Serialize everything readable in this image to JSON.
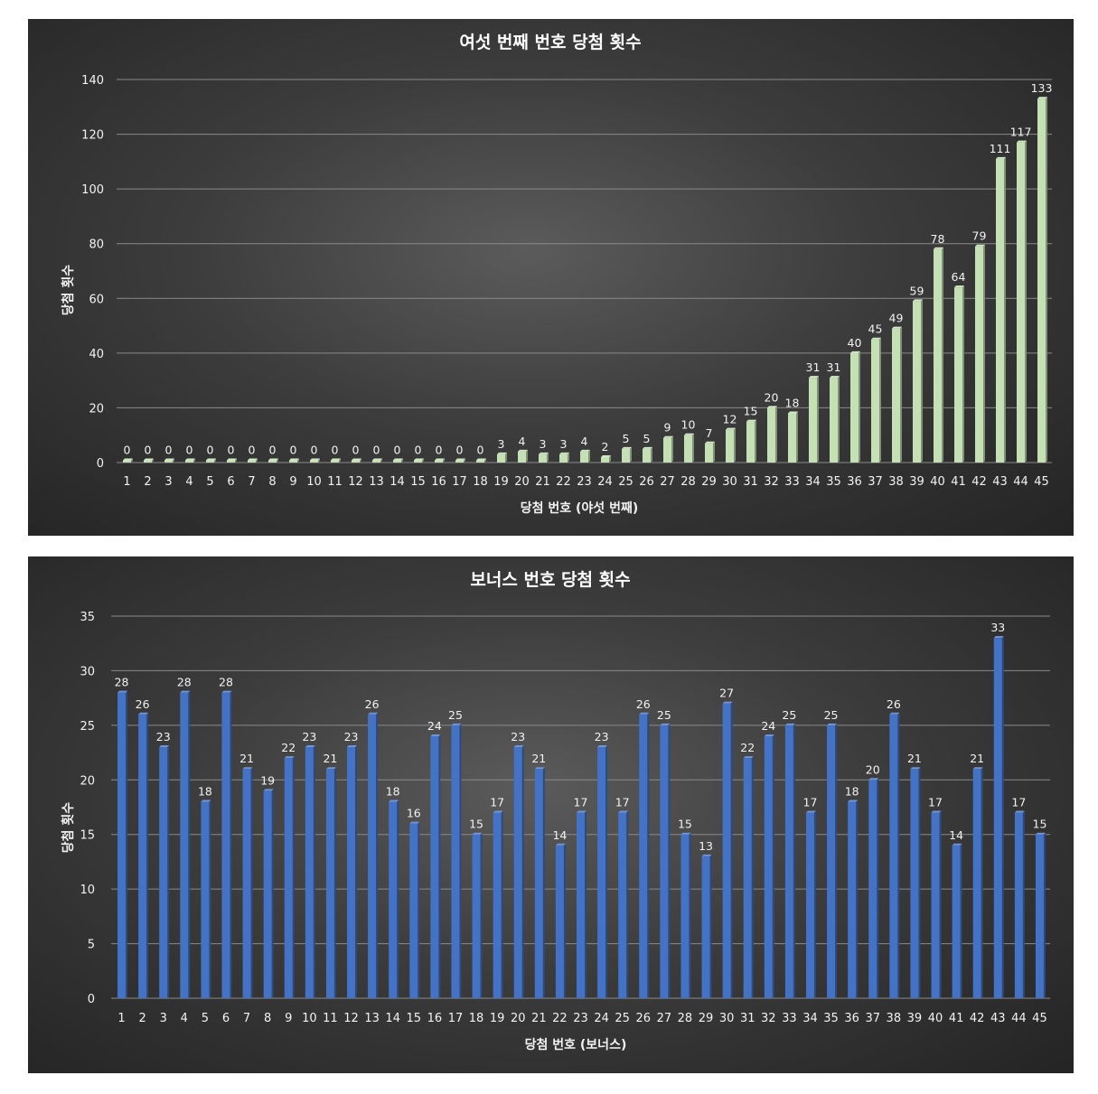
{
  "colors": {
    "green_bar": "#c5e0b4",
    "blue_bar": "#4472c4"
  },
  "chart_data": [
    {
      "type": "bar",
      "title": "여섯 번째 번호 당첨 횟수",
      "xlabel": "당첨 번호 (야섯 번째)",
      "ylabel": "당첨 횟수",
      "ylim": [
        0,
        140
      ],
      "yticks": [
        0,
        20,
        40,
        60,
        80,
        100,
        120,
        140
      ],
      "grid": true,
      "legend": "none",
      "color": "#c5e0b4",
      "categories": [
        "1",
        "2",
        "3",
        "4",
        "5",
        "6",
        "7",
        "8",
        "9",
        "10",
        "11",
        "12",
        "13",
        "14",
        "15",
        "16",
        "17",
        "18",
        "19",
        "20",
        "21",
        "22",
        "23",
        "24",
        "25",
        "26",
        "27",
        "28",
        "29",
        "30",
        "31",
        "32",
        "33",
        "34",
        "35",
        "36",
        "37",
        "38",
        "39",
        "40",
        "41",
        "42",
        "43",
        "44",
        "45"
      ],
      "values": [
        0,
        0,
        0,
        0,
        0,
        0,
        0,
        0,
        0,
        0,
        0,
        0,
        0,
        0,
        0,
        0,
        0,
        0,
        3,
        4,
        3,
        3,
        4,
        2,
        5,
        5,
        9,
        10,
        7,
        12,
        15,
        20,
        18,
        31,
        31,
        40,
        45,
        49,
        59,
        78,
        64,
        79,
        111,
        117,
        133
      ]
    },
    {
      "type": "bar",
      "title": "보너스 번호 당첨 횟수",
      "xlabel": "당첨 번호 (보너스)",
      "ylabel": "당첨 횟수",
      "ylim": [
        0,
        35
      ],
      "yticks": [
        0,
        5,
        10,
        15,
        20,
        25,
        30,
        35
      ],
      "grid": true,
      "legend": "none",
      "color": "#4472c4",
      "categories": [
        "1",
        "2",
        "3",
        "4",
        "5",
        "6",
        "7",
        "8",
        "9",
        "10",
        "11",
        "12",
        "13",
        "14",
        "15",
        "16",
        "17",
        "18",
        "19",
        "20",
        "21",
        "22",
        "23",
        "24",
        "25",
        "26",
        "27",
        "28",
        "29",
        "30",
        "31",
        "32",
        "33",
        "34",
        "35",
        "36",
        "37",
        "38",
        "39",
        "40",
        "41",
        "42",
        "43",
        "44",
        "45"
      ],
      "values": [
        28,
        26,
        23,
        28,
        18,
        28,
        21,
        19,
        22,
        23,
        21,
        23,
        26,
        18,
        16,
        24,
        25,
        15,
        17,
        23,
        21,
        14,
        17,
        23,
        17,
        26,
        25,
        15,
        13,
        27,
        22,
        24,
        25,
        17,
        25,
        18,
        20,
        26,
        21,
        17,
        14,
        21,
        33,
        17,
        15
      ]
    }
  ]
}
